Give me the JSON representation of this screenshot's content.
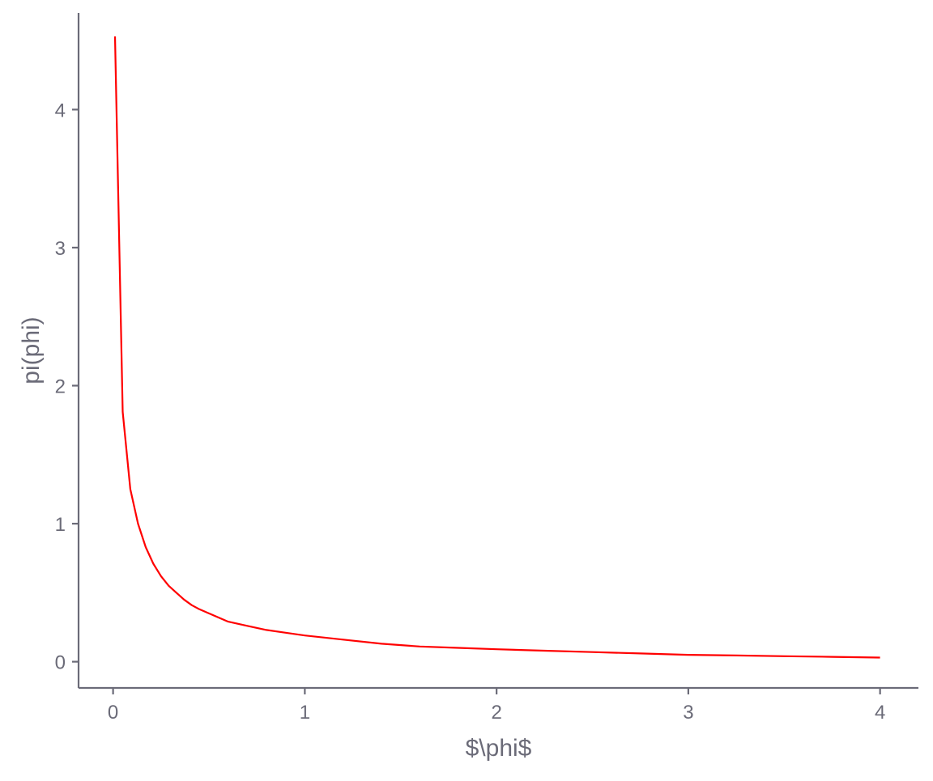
{
  "chart_data": {
    "type": "line",
    "title": "",
    "xlabel": "$\\phi$",
    "ylabel": "pi(phi)",
    "xlim": [
      -0.18,
      4.2
    ],
    "ylim": [
      -0.19,
      4.7
    ],
    "x_ticks": [
      0,
      1,
      2,
      3,
      4
    ],
    "y_ticks": [
      0,
      1,
      2,
      3,
      4
    ],
    "x_tick_labels": [
      "0",
      "1",
      "2",
      "3",
      "4"
    ],
    "y_tick_labels": [
      "0",
      "1",
      "2",
      "3",
      "4"
    ],
    "grid": false,
    "legend": "none",
    "colors": {
      "line": "#ff0000",
      "axis": "#6b6b78",
      "text": "#6b6b78",
      "background": "#ffffff"
    },
    "series": [
      {
        "x": [
          0.01,
          0.05,
          0.09,
          0.13,
          0.17,
          0.21,
          0.25,
          0.29,
          0.33,
          0.37,
          0.41,
          0.45,
          0.5,
          0.6,
          0.7,
          0.8,
          0.9,
          1.0,
          1.2,
          1.4,
          1.6,
          1.8,
          2.0,
          2.25,
          2.5,
          2.75,
          3.0,
          3.25,
          3.5,
          3.75,
          4.0
        ],
        "values": [
          4.53,
          1.81,
          1.25,
          1.0,
          0.83,
          0.71,
          0.62,
          0.55,
          0.5,
          0.45,
          0.41,
          0.38,
          0.35,
          0.29,
          0.26,
          0.23,
          0.21,
          0.19,
          0.16,
          0.13,
          0.11,
          0.1,
          0.09,
          0.08,
          0.07,
          0.06,
          0.05,
          0.045,
          0.04,
          0.035,
          0.03
        ]
      }
    ]
  }
}
